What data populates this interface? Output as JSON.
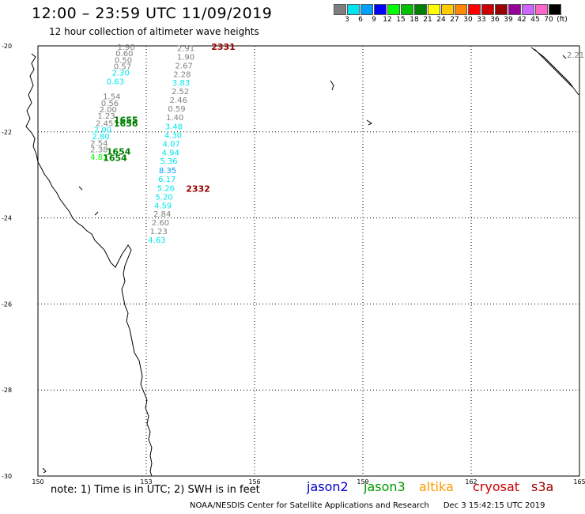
{
  "header": {
    "title": "12:00 – 23:59 UTC 11/09/2019",
    "subtitle": "12 hour collection of altimeter wave heights"
  },
  "legend": {
    "colors": [
      "#7f7f7f",
      "#00e5ee",
      "#00a0ff",
      "#0000ff",
      "#00ff00",
      "#00c000",
      "#008000",
      "#ffff00",
      "#ffcc00",
      "#ff8800",
      "#ff0000",
      "#cc0000",
      "#990000",
      "#990099",
      "#cc66ff",
      "#ff66cc",
      "#000000"
    ],
    "labels": [
      "3",
      "6",
      "9",
      "12",
      "15",
      "18",
      "21",
      "24",
      "27",
      "30",
      "33",
      "36",
      "39",
      "42",
      "45",
      "70",
      "(ft)"
    ]
  },
  "map": {
    "lon_range": [
      150,
      165
    ],
    "lat_range": [
      -30,
      -20
    ],
    "lon_ticks": [
      "150",
      "153",
      "156",
      "159",
      "162",
      "165"
    ],
    "lat_ticks": [
      "-20",
      "-22",
      "-24",
      "-26",
      "-28",
      "-30"
    ],
    "grid": "dotted",
    "time_markers": [
      {
        "text": "2331",
        "lon": 154.8,
        "lat": -20.02,
        "color": "#990000"
      },
      {
        "text": "2332",
        "lon": 154.1,
        "lat": -23.32,
        "color": "#990000"
      },
      {
        "text": "1655",
        "lon": 152.1,
        "lat": -21.72,
        "color": "#008000"
      },
      {
        "text": "1656",
        "lon": 152.1,
        "lat": -21.8,
        "color": "#008000"
      },
      {
        "text": "1654",
        "lon": 151.9,
        "lat": -22.45,
        "color": "#008000"
      },
      {
        "text": "1654",
        "lon": 151.8,
        "lat": -22.6,
        "color": "#008000"
      }
    ],
    "track_s3a": [
      {
        "text": "2.91",
        "lon": 153.85,
        "lat": -20.05,
        "color": "#7f7f7f"
      },
      {
        "text": "1.90",
        "lon": 153.85,
        "lat": -20.25,
        "color": "#7f7f7f"
      },
      {
        "text": "2.67",
        "lon": 153.8,
        "lat": -20.45,
        "color": "#7f7f7f"
      },
      {
        "text": "2.28",
        "lon": 153.75,
        "lat": -20.65,
        "color": "#7f7f7f"
      },
      {
        "text": "3.83",
        "lon": 153.72,
        "lat": -20.85,
        "color": "#00e5ee"
      },
      {
        "text": "2.52",
        "lon": 153.7,
        "lat": -21.05,
        "color": "#7f7f7f"
      },
      {
        "text": "2.46",
        "lon": 153.65,
        "lat": -21.25,
        "color": "#7f7f7f"
      },
      {
        "text": "0.59",
        "lon": 153.6,
        "lat": -21.45,
        "color": "#7f7f7f"
      },
      {
        "text": "1.40",
        "lon": 153.55,
        "lat": -21.65,
        "color": "#7f7f7f"
      },
      {
        "text": "3.48",
        "lon": 153.52,
        "lat": -21.87,
        "color": "#00e5ee"
      },
      {
        "text": "4.30",
        "lon": 153.5,
        "lat": -22.07,
        "color": "#00e5ee"
      },
      {
        "text": "4.07",
        "lon": 153.45,
        "lat": -22.27,
        "color": "#00e5ee"
      },
      {
        "text": "4.94",
        "lon": 153.43,
        "lat": -22.47,
        "color": "#00e5ee"
      },
      {
        "text": "5.36",
        "lon": 153.38,
        "lat": -22.67,
        "color": "#00e5ee"
      },
      {
        "text": "8.35",
        "lon": 153.35,
        "lat": -22.89,
        "color": "#00a0ff"
      },
      {
        "text": "6.17",
        "lon": 153.33,
        "lat": -23.09,
        "color": "#00e5ee"
      },
      {
        "text": "5.26",
        "lon": 153.3,
        "lat": -23.3,
        "color": "#00e5ee"
      },
      {
        "text": "5.20",
        "lon": 153.25,
        "lat": -23.5,
        "color": "#00e5ee"
      },
      {
        "text": "4.59",
        "lon": 153.22,
        "lat": -23.7,
        "color": "#00e5ee"
      },
      {
        "text": "2.84",
        "lon": 153.2,
        "lat": -23.9,
        "color": "#7f7f7f"
      },
      {
        "text": "2.60",
        "lon": 153.15,
        "lat": -24.1,
        "color": "#7f7f7f"
      },
      {
        "text": "1.23",
        "lon": 153.1,
        "lat": -24.3,
        "color": "#7f7f7f"
      },
      {
        "text": "4.63",
        "lon": 153.05,
        "lat": -24.5,
        "color": "#00e5ee"
      }
    ],
    "track_jason3": [
      {
        "text": "1.90",
        "lon": 152.2,
        "lat": -20.02,
        "color": "#7f7f7f"
      },
      {
        "text": "0.60",
        "lon": 152.15,
        "lat": -20.17,
        "color": "#7f7f7f"
      },
      {
        "text": "0.50",
        "lon": 152.12,
        "lat": -20.32,
        "color": "#7f7f7f"
      },
      {
        "text": "0.57",
        "lon": 152.1,
        "lat": -20.47,
        "color": "#7f7f7f"
      },
      {
        "text": "2.30",
        "lon": 152.05,
        "lat": -20.62,
        "color": "#00e5ee"
      },
      {
        "text": "0.63",
        "lon": 151.9,
        "lat": -20.82,
        "color": "#00e5ee"
      },
      {
        "text": "1.54",
        "lon": 151.8,
        "lat": -21.17,
        "color": "#7f7f7f"
      },
      {
        "text": "0.56",
        "lon": 151.75,
        "lat": -21.32,
        "color": "#7f7f7f"
      },
      {
        "text": "2.00",
        "lon": 151.7,
        "lat": -21.47,
        "color": "#7f7f7f"
      },
      {
        "text": "1.23",
        "lon": 151.65,
        "lat": -21.62,
        "color": "#7f7f7f"
      },
      {
        "text": "2.45",
        "lon": 151.6,
        "lat": -21.79,
        "color": "#7f7f7f"
      },
      {
        "text": "2.00",
        "lon": 151.55,
        "lat": -21.94,
        "color": "#00e5ee"
      },
      {
        "text": "2.80",
        "lon": 151.5,
        "lat": -22.1,
        "color": "#00e5ee"
      },
      {
        "text": "2.54",
        "lon": 151.45,
        "lat": -22.25,
        "color": "#7f7f7f"
      },
      {
        "text": "2.38",
        "lon": 151.45,
        "lat": -22.4,
        "color": "#7f7f7f"
      },
      {
        "text": "4.81",
        "lon": 151.45,
        "lat": -22.57,
        "color": "#00ff00"
      }
    ],
    "right_edge_labels": [
      {
        "text": "2.21",
        "lon": 164.65,
        "lat": -20.2,
        "color": "#7f7f7f"
      }
    ]
  },
  "footer": {
    "note": "note: 1) Time is in UTC; 2) SWH is in feet",
    "satellites": [
      {
        "name": "jason2",
        "color": "#0000cc"
      },
      {
        "name": "jason3",
        "color": "#009900"
      },
      {
        "name": "altika",
        "color": "#ff9900"
      },
      {
        "name": "cryosat",
        "color": "#cc0000"
      },
      {
        "name": "s3a",
        "color": "#990000"
      }
    ],
    "credit": "NOAA/NESDIS Center for Satellite Applications and Research",
    "timestamp": "Dec  3 15:42:15 UTC 2019"
  }
}
